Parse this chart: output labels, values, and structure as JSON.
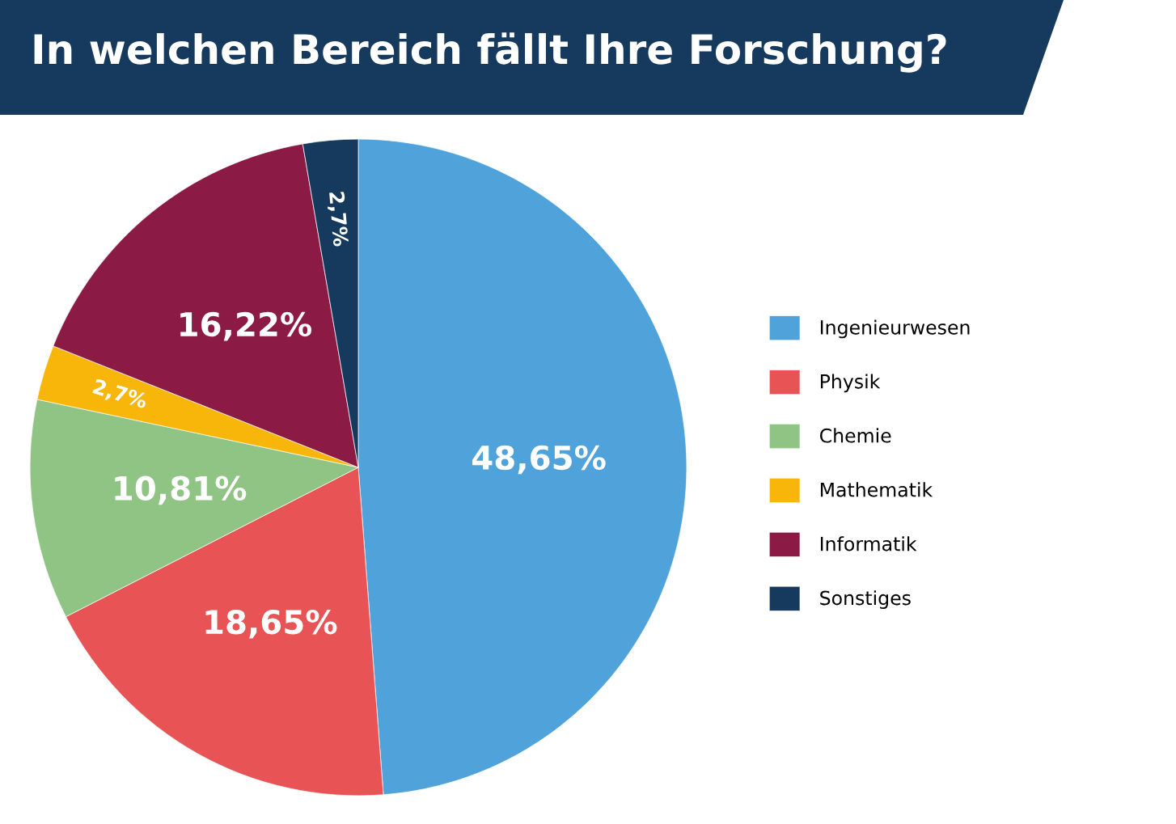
{
  "chart_data": {
    "type": "pie",
    "title": "In welchen Bereich fällt Ihre Forschung?",
    "categories": [
      "Ingenieurwesen",
      "Physik",
      "Chemie",
      "Mathematik",
      "Informatik",
      "Sonstiges"
    ],
    "values": [
      48.65,
      18.65,
      10.81,
      2.7,
      16.22,
      2.7
    ],
    "value_labels": [
      "48,65%",
      "18,65%",
      "10,81%",
      "2,7%",
      "16,22%",
      "2,7%"
    ],
    "colors": [
      "#4fa3da",
      "#e85455",
      "#8fc485",
      "#f9b60a",
      "#8b1a45",
      "#153a5e"
    ],
    "legend": "right"
  }
}
